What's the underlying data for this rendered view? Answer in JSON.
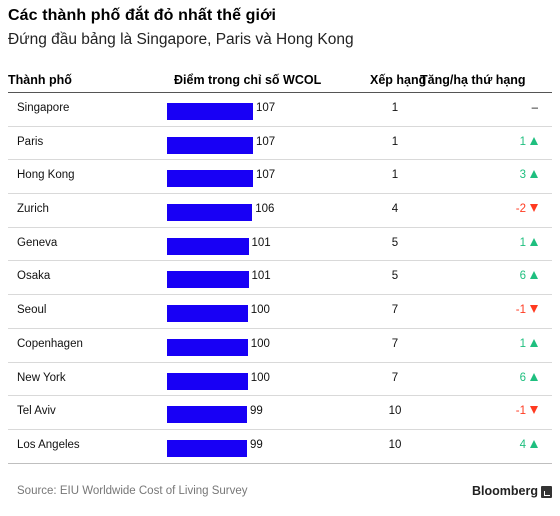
{
  "header": {
    "title": "Các thành phố đắt đỏ nhất thế giới",
    "subtitle": "Đứng đầu bảng là Singapore, Paris và Hong Kong"
  },
  "columns": {
    "city": "Thành phố",
    "score": "Điểm trong chỉ số WCOL",
    "rank": "Xếp hạng",
    "change": "Tăng/hạ thứ hạng"
  },
  "chart_data": {
    "type": "table",
    "bar_color": "#1800f5",
    "up_color": "#1fbf7f",
    "down_color": "#ff3a20",
    "score_axis_max": 107,
    "rows": [
      {
        "city": "Singapore",
        "score": 107,
        "rank": 1,
        "change": "–",
        "direction": "none"
      },
      {
        "city": "Paris",
        "score": 107,
        "rank": 1,
        "change": "1",
        "direction": "up"
      },
      {
        "city": "Hong Kong",
        "score": 107,
        "rank": 1,
        "change": "3",
        "direction": "up"
      },
      {
        "city": "Zurich",
        "score": 106,
        "rank": 4,
        "change": "-2",
        "direction": "down"
      },
      {
        "city": "Geneva",
        "score": 101,
        "rank": 5,
        "change": "1",
        "direction": "up"
      },
      {
        "city": "Osaka",
        "score": 101,
        "rank": 5,
        "change": "6",
        "direction": "up"
      },
      {
        "city": "Seoul",
        "score": 100,
        "rank": 7,
        "change": "-1",
        "direction": "down"
      },
      {
        "city": "Copenhagen",
        "score": 100,
        "rank": 7,
        "change": "1",
        "direction": "up"
      },
      {
        "city": "New York",
        "score": 100,
        "rank": 7,
        "change": "6",
        "direction": "up"
      },
      {
        "city": "Tel Aviv",
        "score": 99,
        "rank": 10,
        "change": "-1",
        "direction": "down"
      },
      {
        "city": "Los Angeles",
        "score": 99,
        "rank": 10,
        "change": "4",
        "direction": "up"
      }
    ]
  },
  "footer": {
    "source": "Source: EIU Worldwide Cost of Living Survey",
    "brand": "Bloomberg"
  }
}
